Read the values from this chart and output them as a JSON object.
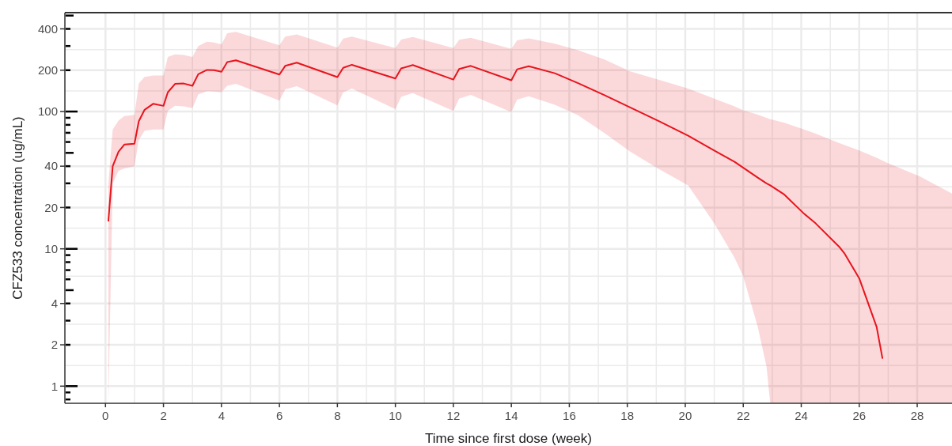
{
  "chart_data": {
    "type": "line",
    "xlabel": "Time since first dose (week)",
    "ylabel": "CFZ533 concentration (ug/mL)",
    "x": [
      0.1,
      0.25,
      0.45,
      0.65,
      1.0,
      1.15,
      1.35,
      1.65,
      2.0,
      2.15,
      2.4,
      2.7,
      3.0,
      3.2,
      3.5,
      3.75,
      4.0,
      4.2,
      4.5,
      6.0,
      6.2,
      6.6,
      8.0,
      8.2,
      8.5,
      10.0,
      10.2,
      10.6,
      12.0,
      12.2,
      12.6,
      14.0,
      14.2,
      14.6,
      15.5,
      16.3,
      17.2,
      18.1,
      19.1,
      20.1,
      21.0,
      21.7,
      22.0,
      22.5,
      22.8,
      22.93,
      23.4,
      24.1,
      24.5,
      25.3,
      25.5,
      26.0,
      26.6,
      26.8,
      27.0,
      28.1,
      29.2
    ],
    "series": [
      {
        "color": "#e8141c",
        "values": [
          16,
          40,
          51,
          57.5,
          58.3,
          85,
          103,
          114,
          110,
          138,
          159,
          160,
          154,
          187,
          201,
          200,
          195,
          229,
          236,
          186,
          215,
          227,
          178,
          208,
          219,
          174,
          206,
          218,
          171,
          204,
          215,
          169,
          203,
          214,
          190,
          161,
          132,
          107,
          85,
          66.6,
          52,
          43,
          39,
          33,
          30,
          29,
          25,
          18,
          15.3,
          10.4,
          9.2,
          6.1,
          2.7,
          1.6,
          null,
          null,
          null
        ],
        "upper": [
          30,
          74,
          86,
          92.6,
          94.5,
          160,
          179,
          183,
          183,
          250,
          261,
          258,
          250,
          300,
          322,
          318,
          308,
          372,
          380,
          304,
          352,
          364,
          292,
          340,
          351,
          290,
          335,
          349,
          290,
          333,
          345,
          286,
          330,
          341,
          312,
          280,
          240,
          196,
          170,
          147,
          124,
          109,
          102,
          95,
          90,
          88,
          83,
          74,
          69,
          59,
          57,
          52,
          46,
          44,
          42,
          33.6,
          25.3
        ],
        "lower": [
          0.75,
          30,
          37,
          38.5,
          40,
          62,
          72.5,
          74,
          74,
          101,
          110,
          109,
          106,
          133,
          141,
          140,
          138,
          154,
          159,
          120,
          145,
          153,
          111,
          138,
          147,
          104,
          128,
          136,
          101,
          124,
          132,
          99,
          122,
          129,
          112,
          94,
          70,
          51,
          38,
          29,
          15.3,
          8.6,
          6.3,
          2.7,
          1.4,
          0.75,
          0.75,
          0.75,
          0.75,
          0.75,
          0.75,
          0.75,
          0.75,
          0.75,
          0.75,
          0.75,
          0.75
        ]
      }
    ],
    "xlim": [
      -1.4,
      29.2
    ],
    "ylim": [
      0.75,
      525
    ],
    "xticks": [
      0,
      2,
      4,
      6,
      8,
      10,
      12,
      14,
      16,
      18,
      20,
      22,
      24,
      26,
      28
    ],
    "yticks": [
      {
        "value": 0.8,
        "label": null
      },
      {
        "value": 0.9,
        "label": null
      },
      1,
      2,
      {
        "value": 3,
        "label": null
      },
      4,
      {
        "value": 5,
        "label": null
      },
      {
        "value": 6,
        "label": null
      },
      {
        "value": 7,
        "label": null
      },
      {
        "value": 8,
        "label": null
      },
      {
        "value": 9,
        "label": null
      },
      10,
      20,
      {
        "value": 30,
        "label": null
      },
      40,
      {
        "value": 50,
        "label": null
      },
      {
        "value": 60,
        "label": null
      },
      {
        "value": 70,
        "label": null
      },
      {
        "value": 80,
        "label": null
      },
      {
        "value": 90,
        "label": null
      },
      100,
      200,
      {
        "value": 300,
        "label": null
      },
      400,
      {
        "value": 500,
        "label": null
      }
    ],
    "log": "y",
    "grid": true
  }
}
